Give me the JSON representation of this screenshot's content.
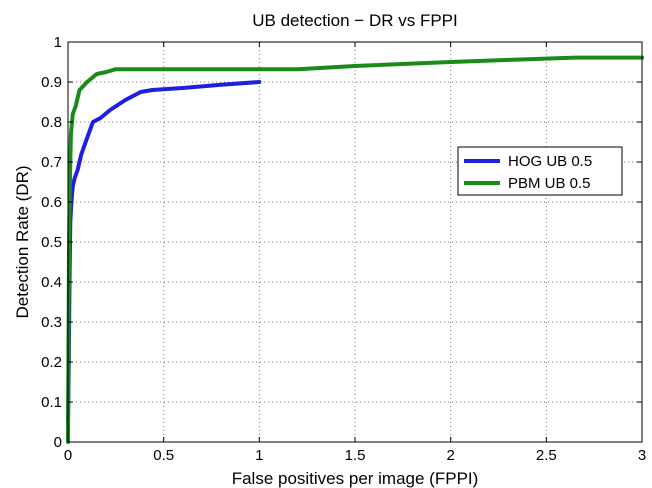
{
  "chart_data": {
    "type": "line",
    "title": "UB detection − DR vs FPPI",
    "xlabel": "False positives per image (FPPI)",
    "ylabel": "Detection Rate (DR)",
    "xlim": [
      0,
      3
    ],
    "ylim": [
      0,
      1
    ],
    "xticks": [
      0,
      0.5,
      1,
      1.5,
      2,
      2.5,
      3
    ],
    "xtick_labels": [
      "0",
      "0.5",
      "1",
      "1.5",
      "2",
      "2.5",
      "3"
    ],
    "yticks": [
      0,
      0.1,
      0.2,
      0.3,
      0.4,
      0.5,
      0.6,
      0.7,
      0.8,
      0.9,
      1
    ],
    "ytick_labels": [
      "0",
      "0.1",
      "0.2",
      "0.3",
      "0.4",
      "0.5",
      "0.6",
      "0.7",
      "0.8",
      "0.9",
      "1"
    ],
    "grid": true,
    "legend_position": "right",
    "series": [
      {
        "name": "HOG UB 0.5",
        "color": "#1f1fe0",
        "x": [
          0.0,
          0.004,
          0.008,
          0.012,
          0.018,
          0.025,
          0.035,
          0.05,
          0.07,
          0.1,
          0.13,
          0.17,
          0.22,
          0.3,
          0.38,
          0.44,
          0.6,
          0.8,
          1.0
        ],
        "y": [
          0.05,
          0.2,
          0.4,
          0.55,
          0.6,
          0.64,
          0.66,
          0.68,
          0.72,
          0.76,
          0.8,
          0.81,
          0.83,
          0.855,
          0.875,
          0.88,
          0.885,
          0.893,
          0.9
        ]
      },
      {
        "name": "PBM UB 0.5",
        "color": "#1a8a1a",
        "x": [
          0.0,
          0.003,
          0.006,
          0.01,
          0.015,
          0.025,
          0.04,
          0.06,
          0.1,
          0.15,
          0.2,
          0.25,
          0.4,
          0.7,
          1.0,
          1.2,
          1.5,
          2.0,
          2.4,
          2.65,
          3.0
        ],
        "y": [
          0.0,
          0.3,
          0.5,
          0.65,
          0.77,
          0.82,
          0.84,
          0.88,
          0.9,
          0.92,
          0.925,
          0.932,
          0.932,
          0.932,
          0.932,
          0.932,
          0.94,
          0.95,
          0.957,
          0.961,
          0.961
        ]
      }
    ]
  }
}
